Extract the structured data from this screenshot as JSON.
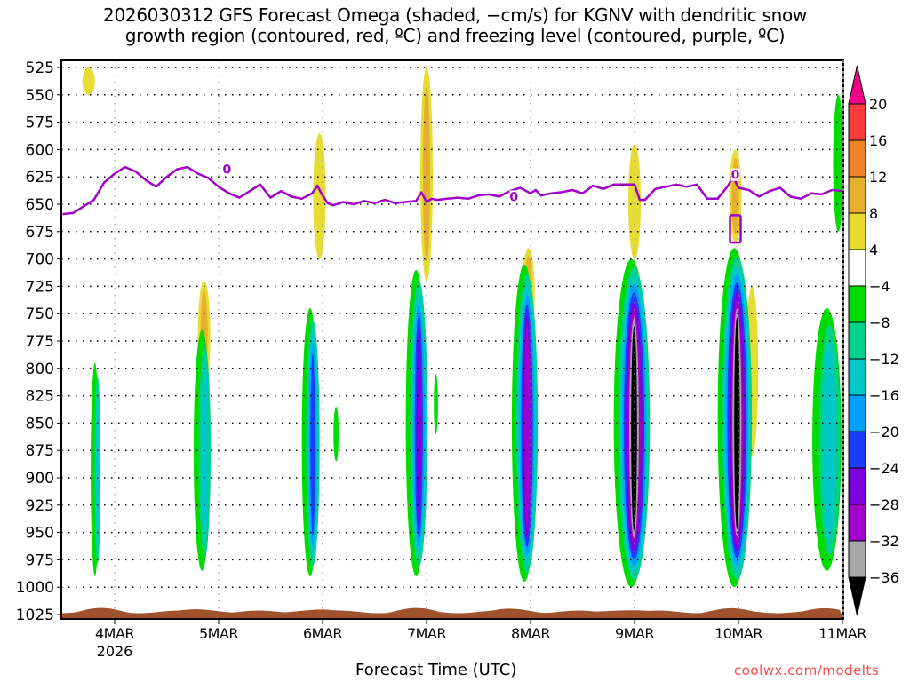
{
  "title": {
    "line1": "2026030312 GFS Forecast Omega (shaded, −cm/s) for KGNV with dendritic snow",
    "line2": "growth region (contoured, red, ºC) and freezing level (contoured, purple, ºC)"
  },
  "credit": "coolwx.com/modelts",
  "chart_data": {
    "type": "heatmap",
    "title": "2026030312 GFS Forecast Omega (shaded, −cm/s) for KGNV with dendritic snow growth region (contoured, red, ºC) and freezing level (contoured, purple, ºC)",
    "xlabel": "Forecast Time (UTC)",
    "ylabel": "",
    "x_unit": "days since 4MAR 00Z",
    "xlim": [
      -0.5,
      7.0
    ],
    "ylim": [
      1025,
      525
    ],
    "y_ticks": [
      525,
      550,
      575,
      600,
      625,
      650,
      675,
      700,
      725,
      750,
      775,
      800,
      825,
      850,
      875,
      900,
      925,
      950,
      975,
      1000,
      1025
    ],
    "x_ticks": [
      {
        "value": 0,
        "label": "4MAR",
        "sublabel": "2026"
      },
      {
        "value": 1,
        "label": "5MAR",
        "sublabel": ""
      },
      {
        "value": 2,
        "label": "6MAR",
        "sublabel": ""
      },
      {
        "value": 3,
        "label": "7MAR",
        "sublabel": ""
      },
      {
        "value": 4,
        "label": "8MAR",
        "sublabel": ""
      },
      {
        "value": 5,
        "label": "9MAR",
        "sublabel": ""
      },
      {
        "value": 6,
        "label": "10MAR",
        "sublabel": ""
      },
      {
        "value": 7,
        "label": "11MAR",
        "sublabel": ""
      }
    ],
    "grid": true,
    "colorbar": {
      "placement": "right",
      "levels": [
        -36,
        -32,
        -28,
        -24,
        -20,
        -16,
        -12,
        -8,
        -4,
        4,
        8,
        12,
        16,
        20
      ],
      "colors": [
        "#000000",
        "#a6a6a6",
        "#a000c8",
        "#7d00dc",
        "#1e3cff",
        "#00a0ff",
        "#00c8c8",
        "#00d28c",
        "#00dc00",
        "#ffffff",
        "#e6dc32",
        "#e6af2d",
        "#f08228",
        "#fa3c3c",
        "#f00082"
      ],
      "labels": [
        "20",
        "16",
        "12",
        "8",
        "4",
        "−4",
        "−8",
        "−12",
        "−16",
        "−20",
        "−24",
        "−28",
        "−32",
        "−36"
      ]
    },
    "omega_features": [
      {
        "name": "day0-ascent",
        "x": -0.19,
        "p_top": 795,
        "p_bottom": 990,
        "halfwidth": 0.04,
        "min_value": -14
      },
      {
        "name": "day1-ascent",
        "x": 0.84,
        "p_top": 765,
        "p_bottom": 985,
        "halfwidth": 0.08,
        "min_value": -14
      },
      {
        "name": "day2-ascent",
        "x": 1.88,
        "p_top": 745,
        "p_bottom": 990,
        "halfwidth": 0.08,
        "min_value": -22
      },
      {
        "name": "day2-small",
        "x": 2.13,
        "p_top": 835,
        "p_bottom": 885,
        "halfwidth": 0.025,
        "min_value": -6
      },
      {
        "name": "day3-ascent",
        "x": 2.9,
        "p_top": 710,
        "p_bottom": 990,
        "halfwidth": 0.1,
        "min_value": -26
      },
      {
        "name": "day3-small",
        "x": 3.09,
        "p_top": 805,
        "p_bottom": 860,
        "halfwidth": 0.02,
        "min_value": -6
      },
      {
        "name": "day4-ascent",
        "x": 3.94,
        "p_top": 705,
        "p_bottom": 995,
        "halfwidth": 0.12,
        "min_value": -30
      },
      {
        "name": "day5-ascent",
        "x": 4.97,
        "p_top": 700,
        "p_bottom": 1000,
        "halfwidth": 0.17,
        "min_value": -40
      },
      {
        "name": "day6-ascent",
        "x": 5.96,
        "p_top": 690,
        "p_bottom": 1000,
        "halfwidth": 0.16,
        "min_value": -40
      },
      {
        "name": "day7-ascent",
        "x": 6.85,
        "p_top": 745,
        "p_bottom": 985,
        "halfwidth": 0.14,
        "min_value": -14
      },
      {
        "name": "day7-upper",
        "x": 6.96,
        "p_top": 550,
        "p_bottom": 675,
        "halfwidth": 0.05,
        "min_value": -6
      }
    ],
    "descent_features": [
      {
        "x": -0.25,
        "p_top": 525,
        "p_bottom": 550,
        "max_value": 6
      },
      {
        "x": 0.86,
        "p_top": 720,
        "p_bottom": 820,
        "max_value": 10
      },
      {
        "x": 1.97,
        "p_top": 585,
        "p_bottom": 700,
        "max_value": 6
      },
      {
        "x": 3.0,
        "p_top": 525,
        "p_bottom": 720,
        "max_value": 8
      },
      {
        "x": 3.98,
        "p_top": 690,
        "p_bottom": 770,
        "max_value": 9
      },
      {
        "x": 5.0,
        "p_top": 595,
        "p_bottom": 700,
        "max_value": 6
      },
      {
        "x": 5.97,
        "p_top": 600,
        "p_bottom": 685,
        "max_value": 10
      },
      {
        "x": 6.13,
        "p_top": 725,
        "p_bottom": 880,
        "max_value": 6
      }
    ],
    "freezing_level": {
      "name": "0 ºC isotherm",
      "color": "#a000c8",
      "x": [
        -0.5,
        -0.4,
        -0.3,
        -0.2,
        -0.1,
        0.0,
        0.1,
        0.2,
        0.3,
        0.4,
        0.5,
        0.6,
        0.7,
        0.8,
        0.9,
        1.0,
        1.1,
        1.2,
        1.3,
        1.4,
        1.5,
        1.6,
        1.7,
        1.8,
        1.9,
        1.95,
        2.0,
        2.05,
        2.1,
        2.2,
        2.3,
        2.4,
        2.5,
        2.6,
        2.7,
        2.8,
        2.9,
        2.95,
        3.0,
        3.05,
        3.1,
        3.2,
        3.3,
        3.4,
        3.5,
        3.6,
        3.7,
        3.8,
        3.9,
        4.0,
        4.05,
        4.1,
        4.2,
        4.3,
        4.4,
        4.5,
        4.6,
        4.7,
        4.8,
        4.9,
        5.0,
        5.05,
        5.1,
        5.2,
        5.3,
        5.4,
        5.5,
        5.6,
        5.7,
        5.8,
        5.9,
        5.95,
        6.0,
        6.1,
        6.2,
        6.3,
        6.4,
        6.5,
        6.6,
        6.7,
        6.8,
        6.9,
        7.0
      ],
      "p": [
        659,
        658,
        652,
        646,
        630,
        622,
        616,
        620,
        628,
        634,
        625,
        618,
        616,
        622,
        626,
        634,
        640,
        644,
        638,
        632,
        644,
        638,
        643,
        645,
        640,
        633,
        642,
        649,
        651,
        648,
        650,
        647,
        649,
        646,
        649,
        648,
        647,
        639,
        648,
        645,
        646,
        645,
        644,
        645,
        642,
        641,
        643,
        638,
        635,
        640,
        637,
        642,
        640,
        639,
        637,
        640,
        633,
        636,
        632,
        632,
        632,
        646,
        646,
        636,
        634,
        632,
        634,
        632,
        645,
        645,
        633,
        625,
        635,
        637,
        643,
        638,
        635,
        643,
        645,
        640,
        641,
        637,
        638
      ],
      "labels": [
        {
          "x": 1.08,
          "p": 618,
          "text": "0"
        },
        {
          "x": 3.84,
          "p": 643,
          "text": "0"
        },
        {
          "x": 5.97,
          "p": 623,
          "text": "0"
        }
      ],
      "closed_contours": [
        {
          "x": 5.97,
          "p_top": 660,
          "p_bottom": 685
        }
      ]
    },
    "terrain": {
      "name": "surface",
      "color": "#a0522d",
      "p_surface_approx": 1018
    }
  }
}
